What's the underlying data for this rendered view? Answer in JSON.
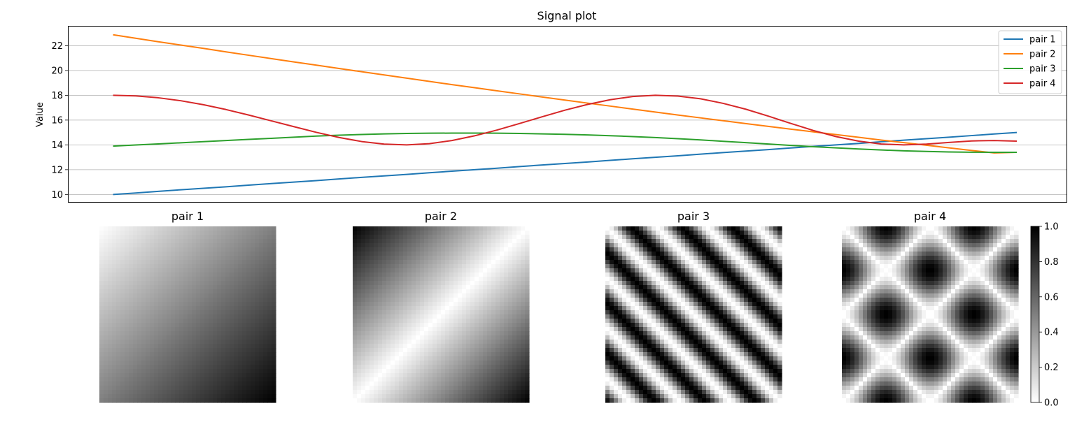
{
  "chart_data": [
    {
      "type": "line",
      "title": "Signal plot",
      "xlabel": "",
      "ylabel": "Value",
      "x": [
        0,
        1,
        2,
        3,
        4,
        5,
        6,
        7,
        8,
        9,
        10,
        11,
        12,
        13,
        14,
        15,
        16,
        17,
        18,
        19,
        20,
        21,
        22,
        23,
        24,
        25,
        26,
        27,
        28,
        29,
        30,
        31,
        32,
        33,
        34,
        35,
        36,
        37,
        38,
        39,
        40
      ],
      "xlim": [
        -2,
        42.2
      ],
      "ylim": [
        9.4,
        23.6
      ],
      "yticks": [
        10,
        12,
        14,
        16,
        18,
        20,
        22
      ],
      "grid": "horizontal",
      "legend": "top-right",
      "series": [
        {
          "name": "pair 1",
          "color": "#1f77b4",
          "values": [
            10.0,
            10.12,
            10.25,
            10.38,
            10.5,
            10.62,
            10.75,
            10.88,
            11.0,
            11.12,
            11.25,
            11.38,
            11.5,
            11.62,
            11.75,
            11.88,
            12.0,
            12.12,
            12.25,
            12.38,
            12.5,
            12.62,
            12.75,
            12.88,
            13.0,
            13.12,
            13.25,
            13.38,
            13.5,
            13.62,
            13.75,
            13.88,
            14.0,
            14.12,
            14.25,
            14.38,
            14.5,
            14.62,
            14.75,
            14.88,
            15.0
          ]
        },
        {
          "name": "pair 2",
          "color": "#ff7f0e",
          "values": [
            22.88,
            22.6,
            22.32,
            22.05,
            21.78,
            21.5,
            21.23,
            20.96,
            20.69,
            20.43,
            20.16,
            19.9,
            19.64,
            19.38,
            19.12,
            18.86,
            18.61,
            18.36,
            18.11,
            17.86,
            17.61,
            17.37,
            17.13,
            16.89,
            16.65,
            16.41,
            16.18,
            15.95,
            15.72,
            15.49,
            15.27,
            15.05,
            14.83,
            14.61,
            14.39,
            14.18,
            13.97,
            13.76,
            13.55,
            13.35,
            13.4
          ]
        },
        {
          "name": "pair 3",
          "color": "#2ca02c",
          "values": [
            13.9,
            13.99,
            14.08,
            14.17,
            14.26,
            14.35,
            14.44,
            14.53,
            14.62,
            14.71,
            14.78,
            14.84,
            14.89,
            14.92,
            14.94,
            14.95,
            14.95,
            14.94,
            14.92,
            14.89,
            14.85,
            14.8,
            14.74,
            14.67,
            14.59,
            14.5,
            14.4,
            14.29,
            14.18,
            14.07,
            13.96,
            13.85,
            13.76,
            13.67,
            13.59,
            13.52,
            13.47,
            13.43,
            13.41,
            13.4,
            13.4
          ]
        },
        {
          "name": "pair 4",
          "color": "#d62728",
          "values": [
            18.0,
            17.95,
            17.8,
            17.56,
            17.24,
            16.85,
            16.41,
            15.94,
            15.47,
            15.01,
            14.6,
            14.27,
            14.06,
            14.0,
            14.1,
            14.35,
            14.73,
            15.2,
            15.73,
            16.27,
            16.8,
            17.26,
            17.64,
            17.9,
            18.0,
            17.94,
            17.72,
            17.35,
            16.88,
            16.32,
            15.73,
            15.16,
            14.67,
            14.3,
            14.07,
            14.0,
            14.06,
            14.2,
            14.32,
            14.35,
            14.3
          ]
        }
      ]
    },
    {
      "type": "heatmap",
      "colormap": "gray_r",
      "colorbar": {
        "range": [
          0.0,
          1.0
        ],
        "ticks": [
          "0.0",
          "0.2",
          "0.4",
          "0.6",
          "0.8",
          "1.0"
        ]
      },
      "panels": [
        {
          "title": "pair 1",
          "pattern": "linear gradient toward bottom-right"
        },
        {
          "title": "pair 2",
          "pattern": "distance from anti-diagonal"
        },
        {
          "title": "pair 3",
          "pattern": "diagonal stripes"
        },
        {
          "title": "pair 4",
          "pattern": "crossed diagonal waves"
        }
      ]
    }
  ]
}
